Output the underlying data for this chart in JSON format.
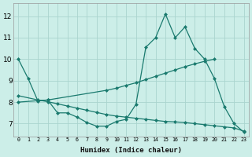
{
  "xlabel": "Humidex (Indice chaleur)",
  "bg_color": "#cceee8",
  "grid_color": "#aad4ce",
  "line_color": "#1a7a6e",
  "xlim_min": -0.5,
  "xlim_max": 23.5,
  "ylim_min": 6.4,
  "ylim_max": 12.6,
  "yticks": [
    7,
    8,
    9,
    10,
    11,
    12
  ],
  "xticks": [
    0,
    1,
    2,
    3,
    4,
    5,
    6,
    7,
    8,
    9,
    10,
    11,
    12,
    13,
    14,
    15,
    16,
    17,
    18,
    19,
    20,
    21,
    22,
    23
  ],
  "line1_x": [
    0,
    1,
    2,
    3,
    4,
    5,
    6,
    7,
    8,
    9,
    10,
    11,
    12,
    13,
    14,
    15,
    16,
    17,
    18,
    19,
    20,
    21,
    22,
    23
  ],
  "line1_y": [
    10.0,
    9.1,
    8.05,
    8.1,
    7.5,
    7.5,
    7.3,
    7.05,
    6.88,
    6.88,
    7.1,
    7.2,
    7.9,
    10.55,
    11.0,
    12.1,
    11.0,
    11.5,
    10.5,
    10.0,
    9.1,
    7.8,
    7.0,
    6.6
  ],
  "line2_x": [
    0,
    3,
    9,
    10,
    11,
    12,
    13,
    14,
    15,
    16,
    17,
    18,
    19,
    20
  ],
  "line2_y": [
    8.0,
    8.1,
    8.55,
    8.65,
    8.78,
    8.9,
    9.05,
    9.2,
    9.35,
    9.5,
    9.65,
    9.78,
    9.9,
    10.0
  ],
  "line3_x": [
    0,
    2,
    3,
    4,
    5,
    6,
    7,
    8,
    9,
    10,
    11,
    12,
    13,
    14,
    15,
    16,
    17,
    18,
    19,
    20,
    21,
    22,
    23
  ],
  "line3_y": [
    8.3,
    8.1,
    8.02,
    7.92,
    7.82,
    7.72,
    7.62,
    7.52,
    7.42,
    7.35,
    7.3,
    7.25,
    7.2,
    7.15,
    7.1,
    7.08,
    7.05,
    7.0,
    6.95,
    6.9,
    6.85,
    6.8,
    6.65
  ]
}
